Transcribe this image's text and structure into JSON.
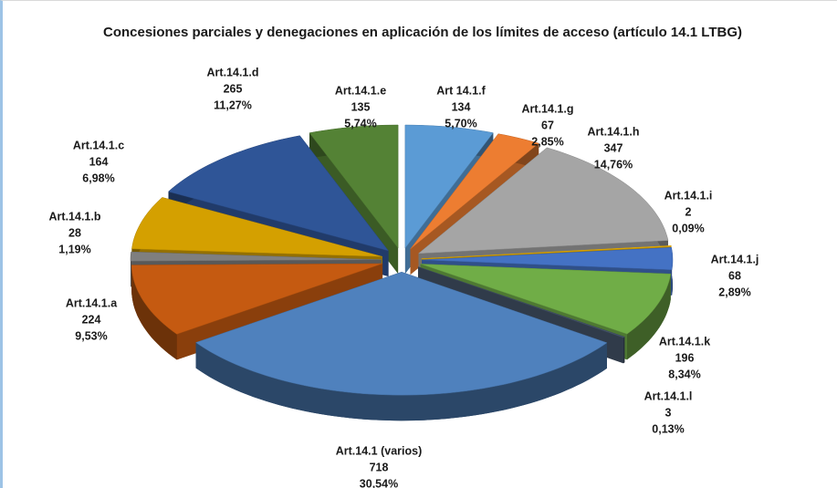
{
  "chart_data": {
    "type": "pie3d",
    "title": "Concesiones parciales y denegaciones en aplicación de los límites de acceso (artículo 14.1 LTBG)",
    "categories": [
      "Art 14.1.f",
      "Art.14.1.g",
      "Art.14.1.h",
      "Art.14.1.i",
      "Art.14.1.j",
      "Art.14.1.k",
      "Art.14.1.l",
      "Art.14.1 (varios)",
      "Art.14.1.a",
      "Art.14.1.b",
      "Art.14.1.c",
      "Art.14.1.d",
      "Art.14.1.e"
    ],
    "values": [
      134,
      67,
      347,
      2,
      68,
      196,
      3,
      718,
      224,
      28,
      164,
      265,
      135
    ],
    "percent_labels": [
      "5,70%",
      "2,85%",
      "14,76%",
      "0,09%",
      "2,89%",
      "8,34%",
      "0,13%",
      "30,54%",
      "9,53%",
      "1,19%",
      "6,98%",
      "11,27%",
      "5,74%"
    ],
    "colors": [
      "#5b9bd5",
      "#ed7d31",
      "#a5a5a5",
      "#ffc000",
      "#4472c4",
      "#70ad47",
      "#44546a",
      "#4f81bd",
      "#c55a11",
      "#7f7f7f",
      "#d4a000",
      "#2f5597",
      "#548235"
    ]
  }
}
